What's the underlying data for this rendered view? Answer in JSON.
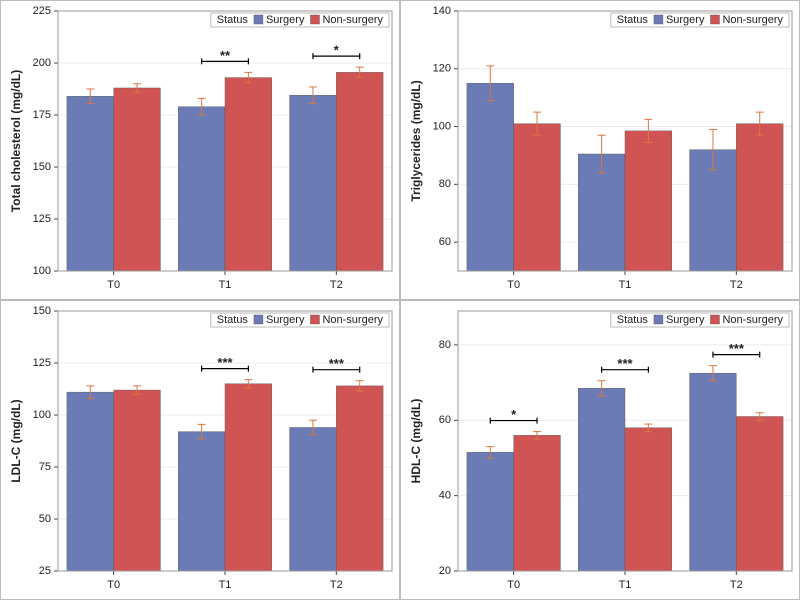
{
  "chart_data": [
    {
      "type": "bar",
      "y_label": "Total cholesterol (mg/dL)",
      "legend_title": "Status",
      "legend_position": "upper right",
      "grid": true,
      "categories": [
        "T0",
        "T1",
        "T2"
      ],
      "ylim": [
        100,
        225
      ],
      "yticks": [
        100,
        125,
        150,
        175,
        200,
        225
      ],
      "series": [
        {
          "name": "Surgery",
          "color": "#6a7bb5",
          "values": [
            184,
            179,
            184.5
          ],
          "errors": [
            3.5,
            4,
            4
          ]
        },
        {
          "name": "Non-surgery",
          "color": "#d05454",
          "values": [
            188,
            193,
            195.5
          ],
          "errors": [
            2,
            2.5,
            2.5
          ]
        }
      ],
      "significance": [
        null,
        "**",
        "*"
      ]
    },
    {
      "type": "bar",
      "y_label": "Triglycerides (mg/dL)",
      "legend_title": "Status",
      "legend_position": "upper right",
      "grid": true,
      "categories": [
        "T0",
        "T1",
        "T2"
      ],
      "ylim": [
        50,
        140
      ],
      "yticks": [
        60,
        80,
        100,
        120,
        140
      ],
      "series": [
        {
          "name": "Surgery",
          "color": "#6a7bb5",
          "values": [
            115,
            90.5,
            92
          ],
          "errors": [
            6,
            6.5,
            7
          ]
        },
        {
          "name": "Non-surgery",
          "color": "#d05454",
          "values": [
            101,
            98.5,
            101
          ],
          "errors": [
            4,
            4,
            4
          ]
        }
      ],
      "significance": [
        null,
        null,
        null
      ]
    },
    {
      "type": "bar",
      "y_label": "LDL-C (mg/dL)",
      "legend_title": "Status",
      "legend_position": "upper right",
      "grid": true,
      "categories": [
        "T0",
        "T1",
        "T2"
      ],
      "ylim": [
        25,
        150
      ],
      "yticks": [
        25,
        50,
        75,
        100,
        125,
        150
      ],
      "series": [
        {
          "name": "Surgery",
          "color": "#6a7bb5",
          "values": [
            111,
            92,
            94
          ],
          "errors": [
            3,
            3.5,
            3.5
          ]
        },
        {
          "name": "Non-surgery",
          "color": "#d05454",
          "values": [
            112,
            115,
            114
          ],
          "errors": [
            2,
            2,
            2.5
          ]
        }
      ],
      "significance": [
        null,
        "***",
        "***"
      ]
    },
    {
      "type": "bar",
      "y_label": "HDL-C (mg/dL)",
      "legend_title": "Status",
      "legend_position": "upper right",
      "grid": true,
      "categories": [
        "T0",
        "T1",
        "T2"
      ],
      "ylim": [
        20,
        89
      ],
      "yticks": [
        20,
        40,
        60,
        80
      ],
      "series": [
        {
          "name": "Surgery",
          "color": "#6a7bb5",
          "values": [
            51.5,
            68.5,
            72.5
          ],
          "errors": [
            1.5,
            2,
            2
          ]
        },
        {
          "name": "Non-surgery",
          "color": "#d05454",
          "values": [
            56,
            58,
            61
          ],
          "errors": [
            1,
            1,
            1
          ]
        }
      ],
      "significance": [
        "*",
        "***",
        "***"
      ]
    }
  ]
}
